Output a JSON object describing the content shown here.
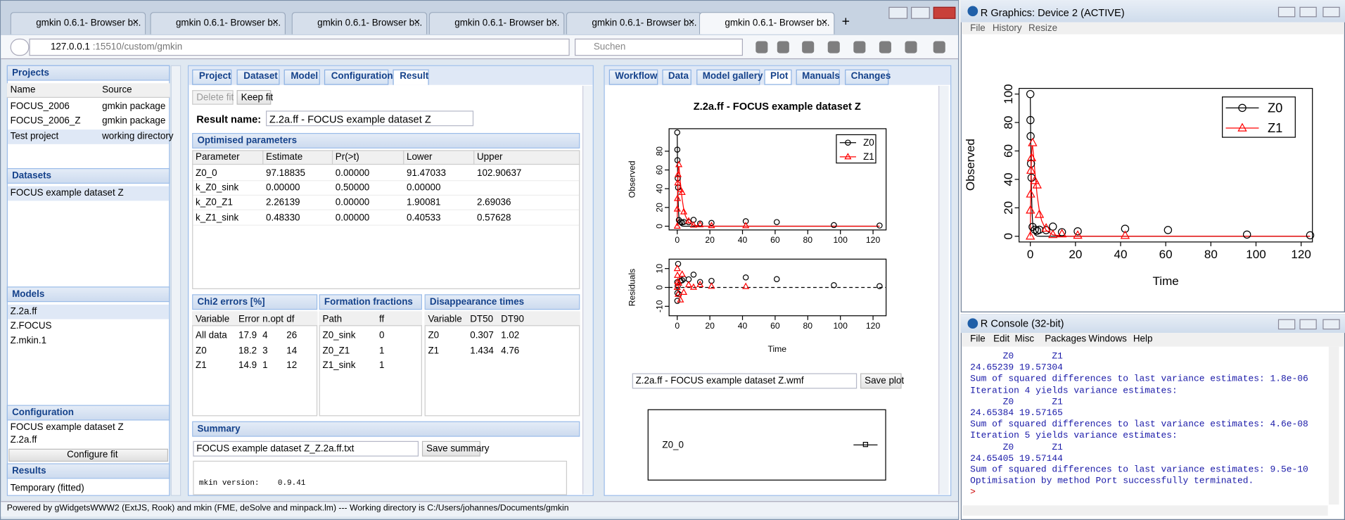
{
  "browser": {
    "tabs": [
      "gmkin 0.6.1- Browser b...",
      "gmkin 0.6.1- Browser b...",
      "gmkin 0.6.1- Browser b...",
      "gmkin 0.6.1- Browser b...",
      "gmkin 0.6.1- Browser b...",
      "gmkin 0.6.1- Browser b..."
    ],
    "url_host": "127.0.0.1",
    "url_rest": ":15510/custom/gmkin",
    "search": "Suchen"
  },
  "left": {
    "projects_title": "Projects",
    "projects_columns": [
      "Name",
      "Source"
    ],
    "projects_rows": [
      [
        "FOCUS_2006",
        "gmkin package"
      ],
      [
        "FOCUS_2006_Z",
        "gmkin package"
      ],
      [
        "Test project",
        "working directory"
      ]
    ],
    "datasets_title": "Datasets",
    "datasets": [
      "FOCUS example dataset Z"
    ],
    "models_title": "Models",
    "models": [
      "Z.2a.ff",
      "Z.FOCUS",
      "Z.mkin.1"
    ],
    "configuration_title": "Configuration",
    "configuration": [
      "FOCUS example dataset Z",
      "Z.2a.ff"
    ],
    "configure_button": "Configure fit",
    "results_title": "Results",
    "results": [
      "Temporary (fitted)"
    ]
  },
  "middle": {
    "tabs": [
      "Project",
      "Dataset",
      "Model",
      "Configuration",
      "Result"
    ],
    "buttons": [
      "Delete fit",
      "Keep fit"
    ],
    "result_name_label": "Result name:",
    "result_name": "Z.2a.ff - FOCUS example dataset Z",
    "optimised_title": "Optimised parameters",
    "params_columns": [
      "Parameter",
      "Estimate",
      "Pr(>t)",
      "Lower",
      "Upper"
    ],
    "params_rows": [
      [
        "Z0_0",
        "97.18835",
        "0.00000",
        "91.47033",
        "102.90637"
      ],
      [
        "k_Z0_sink",
        "0.00000",
        "0.50000",
        "0.00000",
        ""
      ],
      [
        "k_Z0_Z1",
        "2.26139",
        "0.00000",
        "1.90081",
        "2.69036"
      ],
      [
        "k_Z1_sink",
        "0.48330",
        "0.00000",
        "0.40533",
        "0.57628"
      ]
    ],
    "chi2_title": "Chi2 errors [%]",
    "chi2_columns": [
      "Variable",
      "Error",
      "n.opt",
      "df"
    ],
    "chi2_rows": [
      [
        "All data",
        "17.9",
        "4",
        "26"
      ],
      [
        "Z0",
        "18.2",
        "3",
        "14"
      ],
      [
        "Z1",
        "14.9",
        "1",
        "12"
      ]
    ],
    "ff_title": "Formation fractions",
    "ff_columns": [
      "Path",
      "ff"
    ],
    "ff_rows": [
      [
        "Z0_sink",
        "0"
      ],
      [
        "Z0_Z1",
        "1"
      ],
      [
        "Z1_sink",
        "1"
      ]
    ],
    "dt_title": "Disappearance times",
    "dt_columns": [
      "Variable",
      "DT50",
      "DT90"
    ],
    "dt_rows": [
      [
        "Z0",
        "0.307",
        "1.02"
      ],
      [
        "Z1",
        "1.434",
        "4.76"
      ]
    ],
    "summary_title": "Summary",
    "summary_file": "FOCUS example dataset Z_Z.2a.ff.txt",
    "save_summary": "Save summary",
    "summary_text": "mkin version:    0.9.41"
  },
  "right": {
    "tabs": [
      "Workflow",
      "Data",
      "Model gallery",
      "Plot",
      "Manuals",
      "Changes"
    ],
    "plot_file": "Z.2a.ff - FOCUS example dataset Z.wmf",
    "save_plot": "Save plot",
    "param_plot_label": "Z0_0"
  },
  "status": "Powered by gWidgetsWWW2 (ExtJS, Rook) and mkin (FME, deSolve and minpack.lm) --- Working directory is C:/Users/johannes/Documents/gmkin",
  "rgraphics": {
    "title": "R Graphics: Device 2 (ACTIVE)",
    "menu": [
      "File",
      "History",
      "Resize"
    ]
  },
  "rconsole": {
    "title": "R Console (32-bit)",
    "menu": [
      "File",
      "Edit",
      "Misc",
      "Packages",
      "Windows",
      "Help"
    ],
    "lines": [
      "      Z0       Z1",
      "24.65239 19.57304",
      "Sum of squared differences to last variance estimates: 1.8e-06",
      "Iteration 4 yields variance estimates:",
      "      Z0       Z1",
      "24.65384 19.57165",
      "Sum of squared differences to last variance estimates: 4.6e-08",
      "Iteration 5 yields variance estimates:",
      "      Z0       Z1",
      "24.65405 19.57144",
      "Sum of squared differences to last variance estimates: 9.5e-10",
      "Optimisation by method Port successfully terminated.",
      ">"
    ]
  },
  "chart_data": [
    {
      "type": "scatter",
      "title": "Z.2a.ff - FOCUS example dataset Z",
      "xlabel": "Time",
      "ylabel": "Observed",
      "xlim": [
        -5,
        128
      ],
      "ylim": [
        -4,
        104
      ],
      "xticks": [
        0,
        20,
        40,
        60,
        80,
        100,
        120
      ],
      "yticks": [
        0,
        20,
        40,
        60,
        80
      ],
      "x": [
        0,
        0.04,
        0.125,
        0.29,
        0.54,
        1,
        2,
        3,
        4,
        7,
        10,
        14,
        21,
        42,
        61,
        96,
        124
      ],
      "series": [
        {
          "name": "Z0",
          "color": "#000000",
          "values": [
            100,
            81.7,
            70.4,
            51.1,
            41.2,
            6.6,
            4.6,
            3.9,
            4.6,
            4.3,
            6.8,
            2.9,
            3.5,
            5.3,
            4.4,
            1.2,
            0.7
          ]
        },
        {
          "name": "Z1",
          "color": "#ff0000",
          "values": [
            0,
            18.3,
            29.6,
            46.3,
            55.1,
            65.7,
            39.1,
            36,
            15.3,
            5.6,
            1.1,
            1.6,
            0.6,
            0.5,
            null,
            null,
            null
          ]
        }
      ],
      "fitted_x": [
        0,
        0.1,
        0.25,
        0.5,
        0.75,
        1,
        1.5,
        2,
        3,
        4,
        5,
        7,
        10,
        15,
        20,
        40,
        124
      ],
      "fitted": [
        {
          "color": "#000000",
          "values": [
            97.2,
            77.6,
            55.1,
            31.4,
            17.8,
            10.2,
            3.3,
            1.1,
            0.1,
            0,
            0,
            0,
            0,
            0,
            0,
            0,
            0
          ]
        },
        {
          "color": "#ff0000",
          "values": [
            0,
            19.2,
            39.3,
            57.1,
            63.3,
            63.4,
            55.7,
            45.7,
            29,
            17.9,
            11,
            4.2,
            1,
            0.1,
            0,
            0,
            0
          ]
        }
      ]
    },
    {
      "type": "scatter",
      "xlabel": "Time",
      "ylabel": "Residuals",
      "xlim": [
        -5,
        128
      ],
      "ylim": [
        -15,
        15
      ],
      "xticks": [
        0,
        20,
        40,
        60,
        80,
        100,
        120
      ],
      "yticks": [
        -10,
        0,
        10
      ],
      "x": [
        0,
        0.04,
        0.125,
        0.29,
        0.54,
        1,
        2,
        3,
        4,
        7,
        10,
        14,
        21,
        42,
        61,
        96,
        124
      ],
      "series": [
        {
          "color": "#000000",
          "values": [
            2.8,
            -7.1,
            -2.9,
            0.7,
            12.5,
            -3.6,
            3.5,
            3.8,
            4.6,
            4.3,
            6.8,
            2.9,
            3.5,
            5.3,
            4.4,
            1.2,
            0.7
          ]
        },
        {
          "color": "#ff0000",
          "values": [
            0,
            10,
            6.4,
            3,
            -3.6,
            2.3,
            -6.6,
            7,
            -2.6,
            1.4,
            0.1,
            1.5,
            0.6,
            0.5,
            null,
            null,
            null
          ]
        }
      ]
    },
    {
      "type": "scatter",
      "xlabel": "Time",
      "ylabel": "Observed",
      "xlim": [
        -5,
        125
      ],
      "ylim": [
        -4,
        104
      ],
      "xticks": [
        0,
        20,
        40,
        60,
        80,
        100,
        120
      ],
      "yticks": [
        0,
        20,
        40,
        60,
        80,
        100
      ],
      "x": [
        0,
        0.04,
        0.125,
        0.29,
        0.54,
        1,
        2,
        3,
        4,
        7,
        10,
        14,
        21,
        42,
        61,
        96,
        124
      ],
      "series": [
        {
          "name": "Z0",
          "color": "#000000",
          "values": [
            100,
            81.7,
            70.4,
            51.1,
            41.2,
            6.6,
            4.6,
            3.9,
            4.6,
            4.3,
            6.8,
            2.9,
            3.5,
            5.3,
            4.4,
            1.2,
            0.7
          ]
        },
        {
          "name": "Z1",
          "color": "#ff0000",
          "values": [
            0,
            18.3,
            29.6,
            46.3,
            55.1,
            65.7,
            39.1,
            36,
            15.3,
            5.6,
            1.1,
            1.6,
            0.6,
            0.5,
            null,
            null,
            null
          ]
        }
      ],
      "fitted_x": [
        0,
        0.1,
        0.25,
        0.5,
        0.75,
        1,
        1.5,
        2,
        3,
        4,
        5,
        7,
        10,
        15,
        20,
        40,
        124
      ],
      "fitted": [
        {
          "color": "#000000",
          "values": [
            97.2,
            77.6,
            55.1,
            31.4,
            17.8,
            10.2,
            3.3,
            1.1,
            0.1,
            0,
            0,
            0,
            0,
            0,
            0,
            0,
            0
          ]
        },
        {
          "color": "#ff0000",
          "values": [
            0,
            19.2,
            39.3,
            57.1,
            63.3,
            63.4,
            55.7,
            45.7,
            29,
            17.9,
            11,
            4.2,
            1,
            0.1,
            0,
            0,
            0
          ]
        }
      ]
    }
  ]
}
